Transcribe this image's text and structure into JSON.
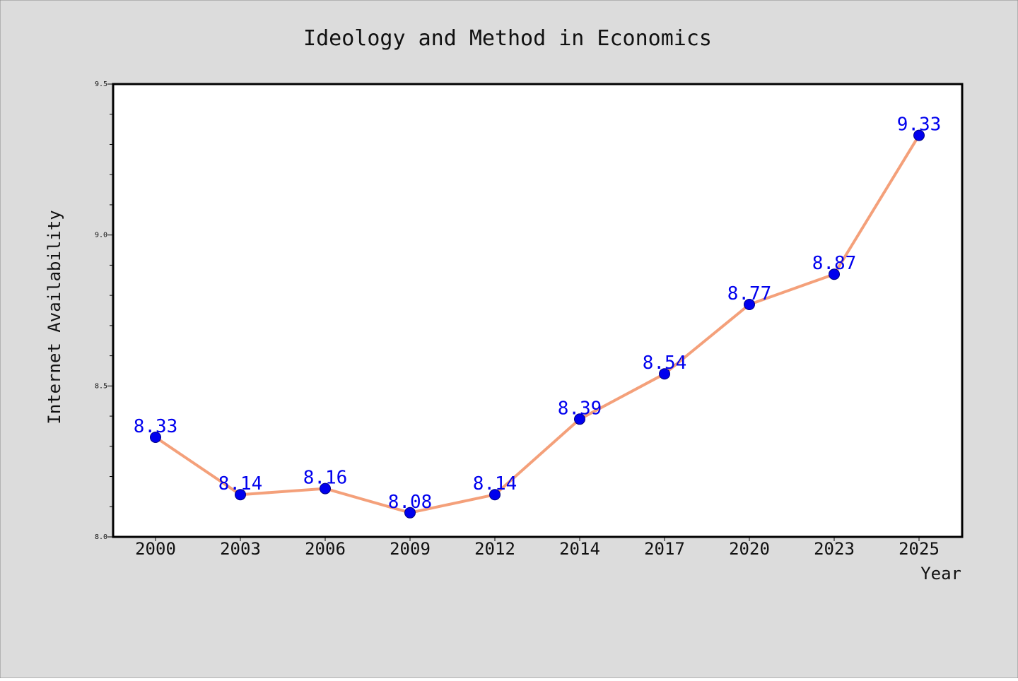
{
  "chart_data": {
    "type": "line",
    "title": "Ideology and Method in Economics",
    "xlabel": "Year",
    "ylabel": "Internet Availability",
    "categories": [
      "2000",
      "2003",
      "2006",
      "2009",
      "2012",
      "2014",
      "2017",
      "2020",
      "2023",
      "2025"
    ],
    "series": [
      {
        "values": [
          8.33,
          8.14,
          8.16,
          8.08,
          8.14,
          8.39,
          8.54,
          8.77,
          8.87,
          9.33
        ]
      }
    ],
    "data_labels": [
      "8.33",
      "8.14",
      "8.16",
      "8.08",
      "8.14",
      "8.39",
      "8.54",
      "8.77",
      "8.87",
      "9.33"
    ],
    "ylim": [
      8.0,
      9.5
    ],
    "yticks": [
      "8.0",
      "8.5",
      "9.0",
      "9.5"
    ],
    "grid": false,
    "legend": "none",
    "colors": {
      "background": "#dcdcdc",
      "plot_background": "#ffffff",
      "line": "#f4a07a",
      "marker": "#0000ee",
      "marker_edge": "#000080",
      "data_label": "#0000ee"
    }
  }
}
